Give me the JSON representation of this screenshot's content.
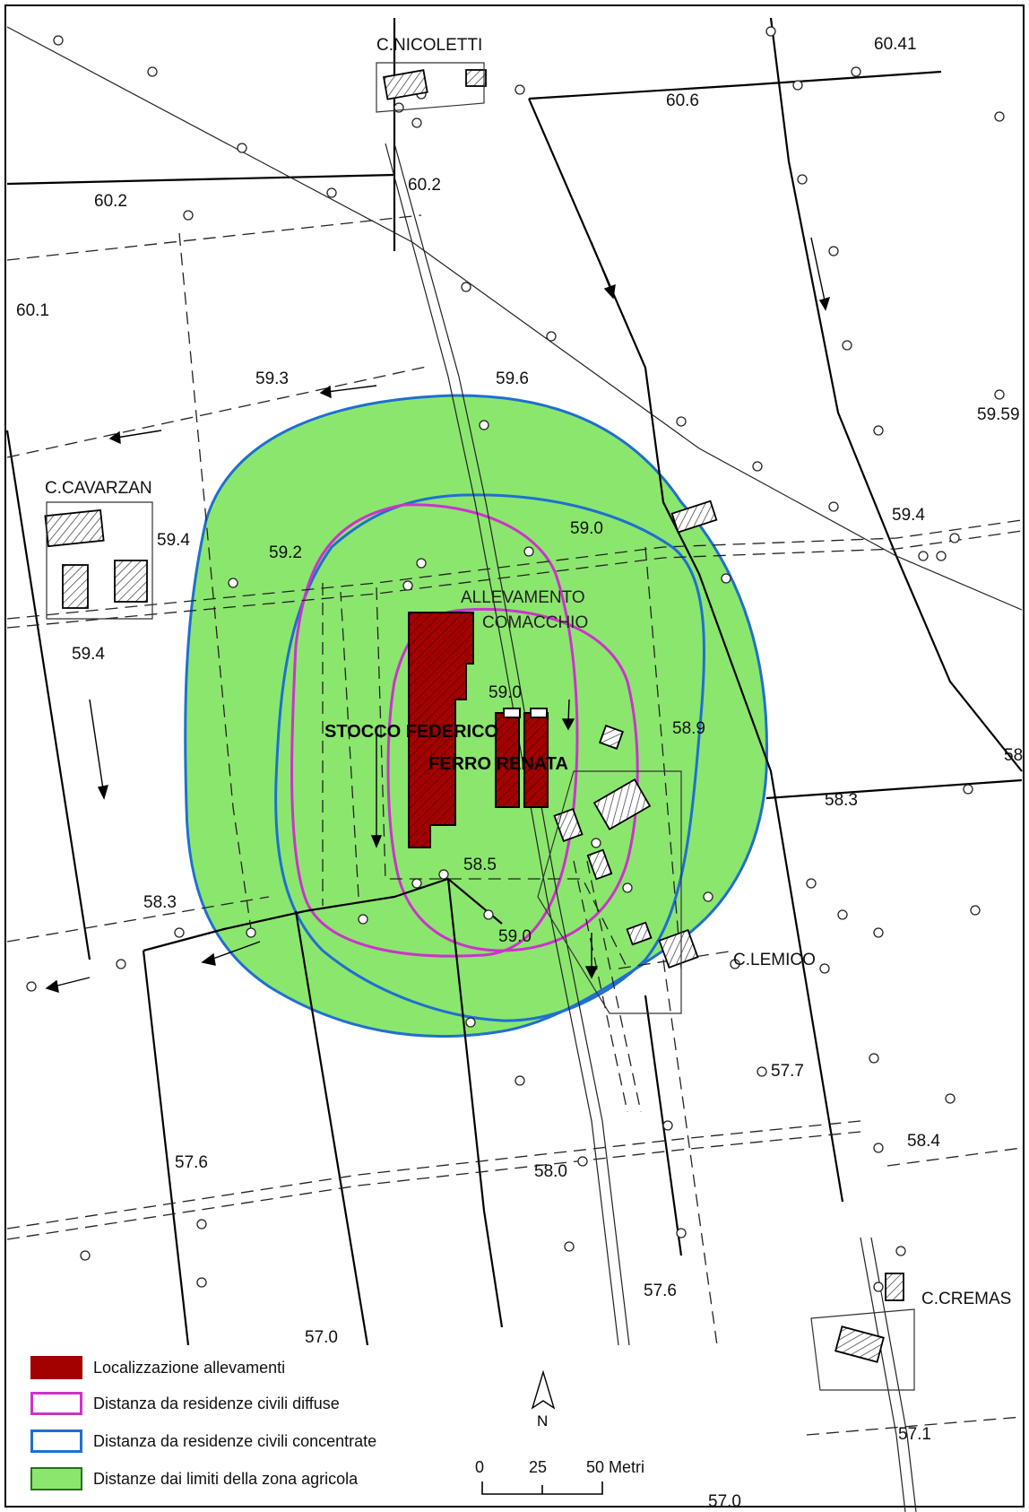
{
  "map": {
    "place_labels": [
      {
        "id": "c-nicoletti",
        "text": "C.NICOLETTI"
      },
      {
        "id": "c-cavarzan",
        "text": "C.CAVARZAN"
      },
      {
        "id": "c-lemico",
        "text": "C.LEMICO"
      },
      {
        "id": "c-cremas",
        "text": "C.CREMAS"
      },
      {
        "id": "allevamento",
        "text": "ALLEVAMENTO"
      },
      {
        "id": "comacchio",
        "text": "COMACCHIO"
      }
    ],
    "farm_labels": [
      {
        "id": "stocco",
        "text": "STOCCO FEDERICO"
      },
      {
        "id": "ferro",
        "text": "FERRO RENATA"
      }
    ],
    "elevations": [
      "60.41",
      "60.6",
      "60.2",
      "60.2",
      "60.1",
      "59.3",
      "59.6",
      "59.59",
      "59.4",
      "59.2",
      "59.0",
      "59.4",
      "59.4",
      "59.0",
      "58.9",
      "58",
      "58.3",
      "58.5",
      "59.0",
      "58.3",
      "57.7",
      "57.6",
      "58.0",
      "58.4",
      "57.6",
      "57.0",
      "57.1",
      "57.0"
    ]
  },
  "legend": {
    "items": [
      {
        "label": "Localizzazione allevamenti",
        "color": "#a30000"
      },
      {
        "label": "Distanza da residenze civili diffuse",
        "color": "#cc33cc"
      },
      {
        "label": "Distanza da residenze civili concentrate",
        "color": "#1f6fd0"
      },
      {
        "label": "Distanze dai limiti della zona agricola",
        "color": "#8be66e"
      }
    ]
  },
  "north": {
    "label": "N"
  },
  "scale": {
    "ticks": [
      "0",
      "25",
      "50 Metri"
    ]
  }
}
